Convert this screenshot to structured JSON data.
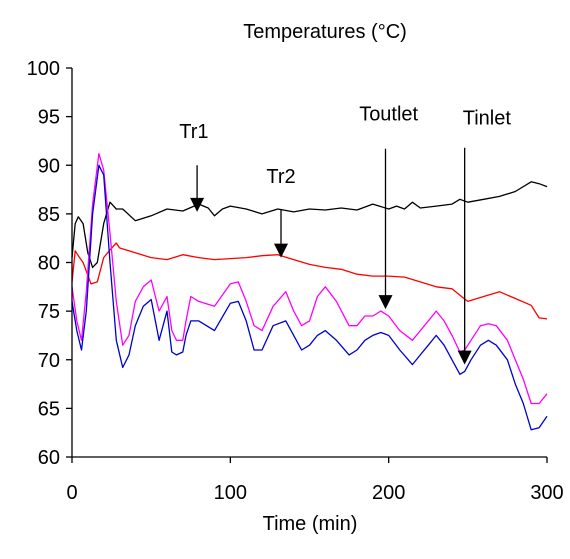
{
  "chart_data": {
    "type": "line",
    "title": "Temperatures (°C)",
    "xlabel": "Time (min)",
    "ylabel": "",
    "xlim": [
      0,
      300
    ],
    "ylim": [
      60,
      100
    ],
    "x_ticks": [
      0,
      100,
      200,
      300
    ],
    "y_ticks": [
      60,
      65,
      70,
      75,
      80,
      85,
      90,
      95,
      100
    ],
    "grid": false,
    "legend": "none",
    "series": [
      {
        "color": "#000000",
        "x": [
          0,
          2,
          4,
          7,
          10,
          13,
          16,
          20,
          24,
          28,
          32,
          40,
          50,
          60,
          70,
          80,
          86,
          90,
          95,
          100,
          110,
          120,
          130,
          140,
          150,
          160,
          170,
          180,
          190,
          200,
          205,
          210,
          215,
          220,
          230,
          240,
          245,
          250,
          260,
          270,
          280,
          290,
          295,
          300
        ],
        "y": [
          80.5,
          84,
          84.7,
          84,
          81,
          79.5,
          80,
          84,
          86.2,
          85.5,
          85.5,
          84.3,
          84.8,
          85.5,
          85.3,
          86,
          85.6,
          84.8,
          85.5,
          85.8,
          85.5,
          85,
          85.5,
          85.2,
          85.5,
          85.4,
          85.6,
          85.4,
          86,
          85.5,
          85.8,
          85.5,
          86.2,
          85.6,
          85.8,
          86,
          86.5,
          86.2,
          86.5,
          86.8,
          87.3,
          88.3,
          88.1,
          87.8
        ]
      },
      {
        "color": "#ff0000",
        "x": [
          0,
          2,
          4,
          7,
          12,
          16,
          20,
          24,
          28,
          30,
          40,
          50,
          60,
          70,
          80,
          90,
          100,
          110,
          120,
          130,
          140,
          150,
          160,
          170,
          180,
          190,
          200,
          210,
          220,
          230,
          240,
          246,
          250,
          260,
          270,
          280,
          290,
          295,
          300
        ],
        "y": [
          78,
          81.2,
          80.7,
          80,
          77.8,
          78,
          80.5,
          81.3,
          82,
          81.5,
          81,
          80.5,
          80.3,
          80.8,
          80.5,
          80.3,
          80.4,
          80.5,
          80.7,
          80.8,
          80.3,
          79.8,
          79.5,
          79.3,
          78.8,
          78.6,
          78.6,
          78.5,
          78,
          77.5,
          77.3,
          76.5,
          76,
          76.5,
          77,
          76.3,
          75.6,
          74.3,
          74.2
        ]
      },
      {
        "color": "#ff00ff",
        "x": [
          0,
          3,
          6,
          9,
          13,
          17,
          20,
          24,
          28,
          32,
          36,
          40,
          45,
          50,
          55,
          60,
          63,
          66,
          70,
          72,
          75,
          80,
          90,
          100,
          105,
          110,
          115,
          120,
          127,
          135,
          140,
          145,
          150,
          155,
          160,
          167,
          175,
          180,
          185,
          190,
          195,
          200,
          207,
          215,
          220,
          225,
          230,
          235,
          240,
          245,
          248,
          252,
          258,
          263,
          268,
          275,
          280,
          285,
          290,
          295,
          300
        ],
        "y": [
          77.5,
          74,
          72,
          77,
          86,
          91.2,
          89.5,
          83,
          76,
          71.5,
          72.5,
          76,
          77.5,
          78.2,
          75,
          76.5,
          73,
          72,
          72,
          74,
          76.5,
          76,
          75.5,
          77.8,
          78,
          76,
          73.5,
          73,
          75.5,
          77,
          75,
          73.5,
          74,
          76.5,
          77.5,
          76,
          73.5,
          73.5,
          74.5,
          74.5,
          75,
          74.5,
          73,
          72,
          73,
          74,
          75,
          74,
          72.5,
          70.8,
          71,
          72,
          73.5,
          73.7,
          73.5,
          72,
          70,
          68,
          65.5,
          65.5,
          66.5
        ]
      },
      {
        "color": "#0000cc",
        "x": [
          0,
          3,
          6,
          9,
          13,
          17,
          20,
          24,
          28,
          32,
          36,
          40,
          45,
          50,
          55,
          60,
          63,
          66,
          70,
          72,
          75,
          80,
          90,
          100,
          105,
          110,
          115,
          120,
          127,
          135,
          140,
          145,
          150,
          155,
          160,
          167,
          175,
          180,
          185,
          190,
          195,
          200,
          207,
          215,
          220,
          225,
          230,
          235,
          240,
          245,
          248,
          252,
          258,
          263,
          268,
          275,
          280,
          285,
          290,
          295,
          300
        ],
        "y": [
          76,
          73,
          71,
          75,
          85,
          90,
          89,
          80,
          72,
          69.2,
          70.5,
          73.5,
          75.5,
          76.2,
          72,
          75,
          70.8,
          70.5,
          70.8,
          72.5,
          74,
          74,
          73,
          75.8,
          76,
          74,
          71,
          71,
          73.5,
          74,
          72.5,
          71,
          71.5,
          72.5,
          73,
          72,
          70.5,
          71,
          72,
          72.5,
          72.8,
          72.5,
          71,
          69.5,
          70.5,
          71.5,
          72.5,
          71.5,
          70,
          68.5,
          68.8,
          70,
          71.5,
          72,
          71.5,
          70,
          67.5,
          65.5,
          62.8,
          63,
          64.2
        ]
      }
    ],
    "annotations": [
      {
        "text": "Tr1",
        "label_x": 77,
        "label_y": 92.8,
        "arrow_x": 79,
        "arrow_from_y": 90,
        "arrow_to_y": 85.2
      },
      {
        "text": "Tr2",
        "label_x": 132,
        "label_y": 88.2,
        "arrow_x": 132,
        "arrow_from_y": 85.5,
        "arrow_to_y": 80.5
      },
      {
        "text": "Toutlet",
        "label_x": 200,
        "label_y": 94.6,
        "arrow_x": 198,
        "arrow_from_y": 91.7,
        "arrow_to_y": 75.2
      },
      {
        "text": "Tinlet",
        "label_x": 262,
        "label_y": 94.2,
        "arrow_x": 248,
        "arrow_from_y": 91.8,
        "arrow_to_y": 69.5
      }
    ]
  }
}
